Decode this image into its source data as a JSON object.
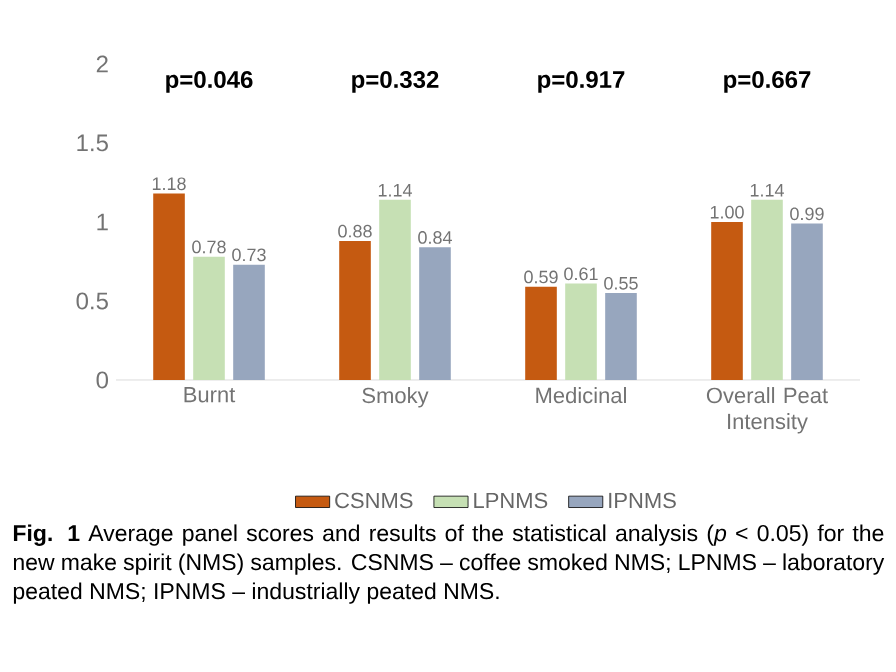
{
  "chart_data": {
    "type": "bar",
    "categories": [
      "Burnt",
      "Smoky",
      "Medicinal",
      "Overall Peat Intensity"
    ],
    "series": [
      {
        "name": "CSNMS",
        "color": "#c55a11",
        "values": [
          1.18,
          0.88,
          0.59,
          1.0
        ],
        "value_labels": [
          "1.18",
          "0.88",
          "0.59",
          "1.00"
        ]
      },
      {
        "name": "LPNMS",
        "color": "#c6e0b4",
        "values": [
          0.78,
          1.14,
          0.61,
          1.14
        ],
        "value_labels": [
          "0.78",
          "1.14",
          "0.61",
          "1.14"
        ]
      },
      {
        "name": "IPNMS",
        "color": "#97a6be",
        "values": [
          0.73,
          0.84,
          0.55,
          0.99
        ],
        "value_labels": [
          "0.73",
          "0.84",
          "0.55",
          "0.99"
        ]
      }
    ],
    "ylim": [
      0,
      2
    ],
    "yticks": [
      0,
      0.5,
      1,
      1.5,
      2
    ],
    "grid": false,
    "legend": "bottom",
    "annotations": [
      "**p=0.046**",
      "**p=0.332**",
      "**p=0.917**",
      "**p=0.667**",
      "**Fig. 1**  Average panel scores and results of the statistical analysis (*p* < 0.05) for the new make spirit (NMS) samples. CSNMS – coffee smoked NMS; LPNMS – laboratory peated NMS; IPNMS – industrially peated NMS."
    ]
  }
}
